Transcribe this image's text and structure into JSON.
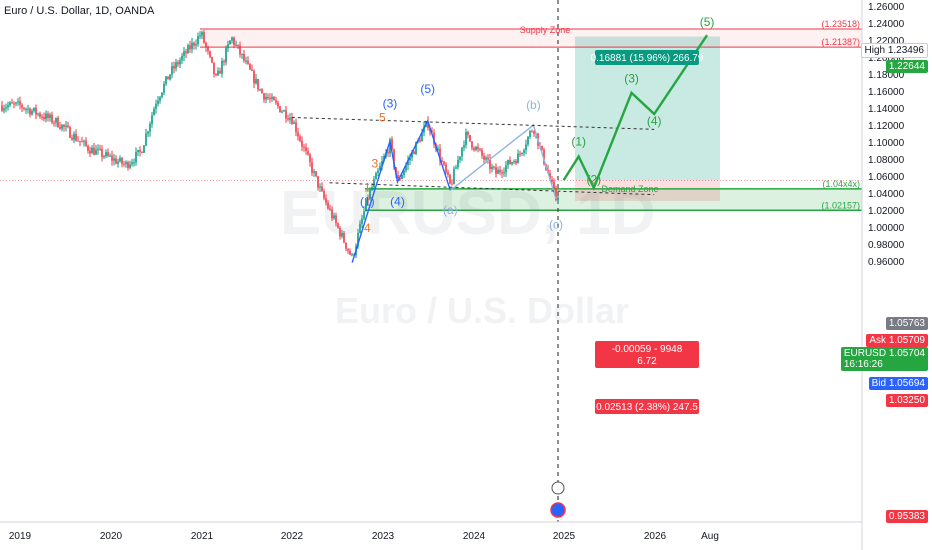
{
  "header": {
    "symbol_title": "Euro / U.S. Dollar, 1D, OANDA"
  },
  "watermark": {
    "symbol": "EURUSD, 1D",
    "name": "Euro / U.S. Dollar"
  },
  "chart_data": {
    "type": "candlestick",
    "x_tick_labels": [
      "2019",
      "2020",
      "2021",
      "2022",
      "2023",
      "2024",
      "2025",
      "2026",
      "Aug"
    ],
    "y_tick_labels": [
      "1.26000",
      "1.24000",
      "1.22000",
      "1.20000",
      "1.18000",
      "1.16000",
      "1.14000",
      "1.12000",
      "1.10000",
      "1.08000",
      "1.06000",
      "1.04000",
      "1.02000",
      "1.00000",
      "0.98000",
      "0.96000"
    ],
    "ylim": [
      0.948,
      1.263
    ],
    "price_path": [
      [
        "2019-01",
        1.145
      ],
      [
        "2019-06",
        1.125
      ],
      [
        "2019-10",
        1.095
      ],
      [
        "2020-03",
        1.075
      ],
      [
        "2020-05",
        1.09
      ],
      [
        "2020-07",
        1.15
      ],
      [
        "2020-09",
        1.185
      ],
      [
        "2021-01",
        1.23
      ],
      [
        "2021-03",
        1.175
      ],
      [
        "2021-05",
        1.225
      ],
      [
        "2021-09",
        1.16
      ],
      [
        "2022-01",
        1.13
      ],
      [
        "2022-05",
        1.04
      ],
      [
        "2022-09",
        0.965
      ],
      [
        "2022-11",
        1.035
      ],
      [
        "2023-02",
        1.1
      ],
      [
        "2023-03",
        1.055
      ],
      [
        "2023-07",
        1.125
      ],
      [
        "2023-10",
        1.05
      ],
      [
        "2023-12",
        1.11
      ],
      [
        "2024-04",
        1.065
      ],
      [
        "2024-07",
        1.085
      ],
      [
        "2024-09",
        1.12
      ],
      [
        "2024-12",
        1.035
      ],
      [
        "2025-01",
        1.057
      ]
    ],
    "horizontal_levels": [
      {
        "label": "Supply Zone",
        "price": 1.23518,
        "price_label": "(1.23518)"
      },
      {
        "label": "Supply Zone low",
        "price": 1.21387,
        "price_label": "(1.21387)"
      },
      {
        "label": "Demand Zone",
        "price": 1.0468,
        "price_label": "(1.04x4x)"
      },
      {
        "label": "Demand Zone low",
        "price": 1.02157,
        "price_label": "(1.02157)"
      }
    ],
    "projection_path": [
      [
        "2025-01",
        1.057
      ],
      [
        "2025-03",
        1.085
      ],
      [
        "2025-05",
        1.048
      ],
      [
        "2025-10",
        1.16
      ],
      [
        "2026-01",
        1.135
      ],
      [
        "2026-08",
        1.228
      ]
    ],
    "position": {
      "entry": 1.057,
      "target": 1.2264,
      "stop": 1.0325,
      "target_label": "0.16881 (15.96%) 266.79",
      "risk_label_1": "-0.00059 - 9948",
      "risk_label_2": "6.72",
      "stop_label": "0.02513 (2.38%) 247.5"
    },
    "wave_labels": [
      {
        "text": "(1)",
        "date": "2022-11",
        "price": 1.027,
        "color": "#2962ff"
      },
      {
        "text": "(3)",
        "date": "2023-02",
        "price": 1.143,
        "color": "#2962ff"
      },
      {
        "text": "(4)",
        "date": "2023-03",
        "price": 1.027,
        "color": "#2962ff"
      },
      {
        "text": "(5)",
        "date": "2023-07",
        "price": 1.16,
        "color": "#2962ff"
      },
      {
        "text": "(a)",
        "date": "2023-10",
        "price": 1.017,
        "color": "#8fb5e0"
      },
      {
        "text": "(b)",
        "date": "2024-09",
        "price": 1.141,
        "color": "#8fb5e0"
      },
      {
        "text": "(c)",
        "date": "2024-12",
        "price": 1.0,
        "color": "#8fb5e0"
      },
      {
        "text": "5",
        "date": "2023-01",
        "price": 1.126,
        "color": "#e8722a"
      },
      {
        "text": "3",
        "date": "2022-12",
        "price": 1.072,
        "color": "#e8722a"
      },
      {
        "text": "1",
        "date": "2022-11",
        "price": 1.044,
        "color": "#e8722a"
      },
      {
        "text": "4",
        "date": "2022-11",
        "price": 0.996,
        "color": "#e8722a"
      },
      {
        "text": "(1)",
        "date": "2025-03",
        "price": 1.098,
        "color": "#26a641"
      },
      {
        "text": "(2)",
        "date": "2025-05",
        "price": 1.053,
        "color": "#26a641"
      },
      {
        "text": "(3)",
        "date": "2025-10",
        "price": 1.172,
        "color": "#26a641"
      },
      {
        "text": "(4)",
        "date": "2026-01",
        "price": 1.122,
        "color": "#26a641"
      },
      {
        "text": "(5)",
        "date": "2026-08",
        "price": 1.239,
        "color": "#26a641"
      }
    ],
    "zone_labels": {
      "supply": "Supply Zone",
      "demand": "Demand Zone"
    }
  },
  "price_scale_tags": [
    {
      "text": "High",
      "value": "1.23496",
      "color": "#ffffff",
      "text_color": "#131722"
    },
    {
      "value": "1.22644",
      "color": "#26a641"
    },
    {
      "value": "1.05763",
      "color": "#787b86"
    },
    {
      "text": "Ask",
      "value": "1.05709",
      "color": "#f23645"
    },
    {
      "text": "EURUSD",
      "value": "1.05704",
      "sub": "16:16:26",
      "color": "#26a641"
    },
    {
      "text": "Bid",
      "value": "1.05694",
      "color": "#2962ff"
    },
    {
      "value": "1.03250",
      "color": "#f23645"
    },
    {
      "value": "0.95383",
      "color": "#f23645"
    }
  ]
}
